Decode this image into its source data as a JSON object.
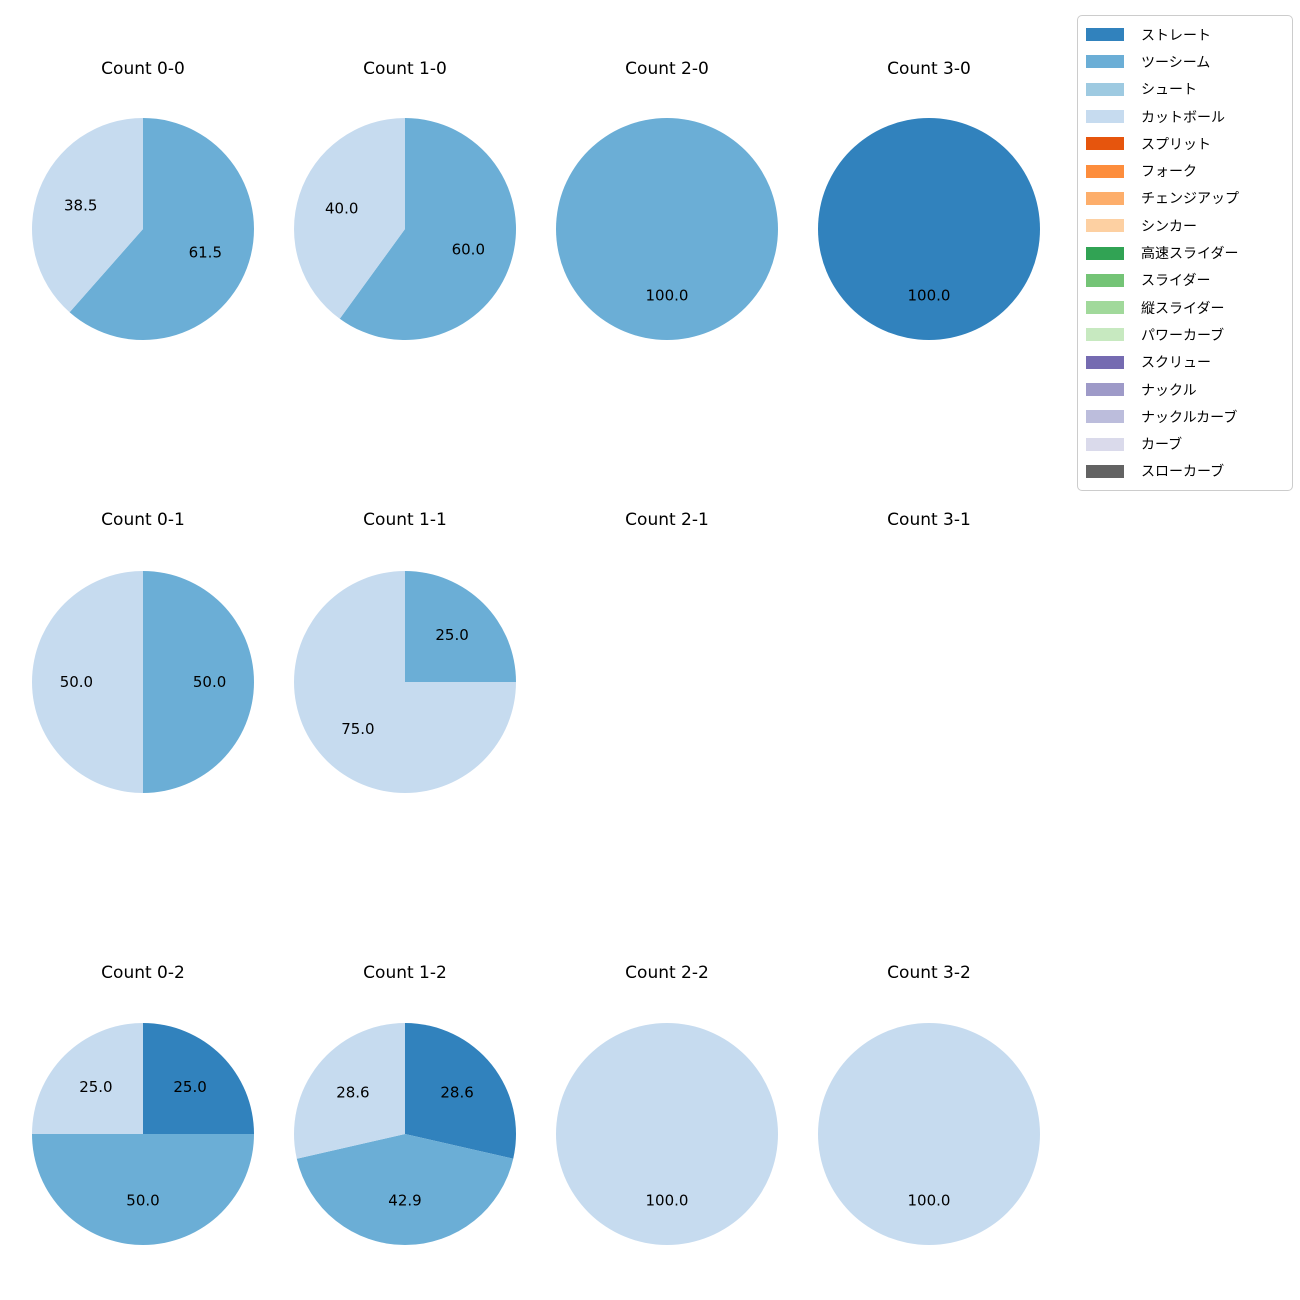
{
  "chart_data": {
    "type": "pie",
    "unit": "percent",
    "start_angle": 90,
    "direction": "clockwise",
    "autopct_decimals": 1,
    "legend_position": "upper right",
    "legend": [
      {
        "label": "ストレート",
        "color": "#3182bd"
      },
      {
        "label": "ツーシーム",
        "color": "#6baed6"
      },
      {
        "label": "シュート",
        "color": "#9ecae1"
      },
      {
        "label": "カットボール",
        "color": "#c6dbef"
      },
      {
        "label": "スプリット",
        "color": "#e6550d"
      },
      {
        "label": "フォーク",
        "color": "#fd8d3c"
      },
      {
        "label": "チェンジアップ",
        "color": "#fdae6b"
      },
      {
        "label": "シンカー",
        "color": "#fdd0a2"
      },
      {
        "label": "高速スライダー",
        "color": "#31a354"
      },
      {
        "label": "スライダー",
        "color": "#74c476"
      },
      {
        "label": "縦スライダー",
        "color": "#a1d99b"
      },
      {
        "label": "パワーカーブ",
        "color": "#c7e9c0"
      },
      {
        "label": "スクリュー",
        "color": "#756bb1"
      },
      {
        "label": "ナックル",
        "color": "#9e9ac8"
      },
      {
        "label": "ナックルカーブ",
        "color": "#bcbddc"
      },
      {
        "label": "カーブ",
        "color": "#dadaeb"
      },
      {
        "label": "スローカーブ",
        "color": "#636363"
      }
    ],
    "charts": [
      {
        "title": "Count 0-0",
        "slices": [
          {
            "label": "ツーシーム",
            "value": 61.5
          },
          {
            "label": "カットボール",
            "value": 38.5
          }
        ]
      },
      {
        "title": "Count 1-0",
        "slices": [
          {
            "label": "ツーシーム",
            "value": 60.0
          },
          {
            "label": "カットボール",
            "value": 40.0
          }
        ]
      },
      {
        "title": "Count 2-0",
        "slices": [
          {
            "label": "ツーシーム",
            "value": 100.0
          }
        ]
      },
      {
        "title": "Count 3-0",
        "slices": [
          {
            "label": "ストレート",
            "value": 100.0
          }
        ]
      },
      {
        "title": "Count 0-1",
        "slices": [
          {
            "label": "ツーシーム",
            "value": 50.0
          },
          {
            "label": "カットボール",
            "value": 50.0
          }
        ]
      },
      {
        "title": "Count 1-1",
        "slices": [
          {
            "label": "ツーシーム",
            "value": 25.0
          },
          {
            "label": "カットボール",
            "value": 75.0
          }
        ]
      },
      {
        "title": "Count 2-1",
        "slices": []
      },
      {
        "title": "Count 3-1",
        "slices": []
      },
      {
        "title": "Count 0-2",
        "slices": [
          {
            "label": "ストレート",
            "value": 25.0
          },
          {
            "label": "ツーシーム",
            "value": 50.0
          },
          {
            "label": "カットボール",
            "value": 25.0
          }
        ]
      },
      {
        "title": "Count 1-2",
        "slices": [
          {
            "label": "ストレート",
            "value": 28.6
          },
          {
            "label": "ツーシーム",
            "value": 42.9
          },
          {
            "label": "カットボール",
            "value": 28.6
          }
        ]
      },
      {
        "title": "Count 2-2",
        "slices": [
          {
            "label": "カットボール",
            "value": 100.0
          }
        ]
      },
      {
        "title": "Count 3-2",
        "slices": [
          {
            "label": "カットボール",
            "value": 100.0
          }
        ]
      }
    ]
  }
}
